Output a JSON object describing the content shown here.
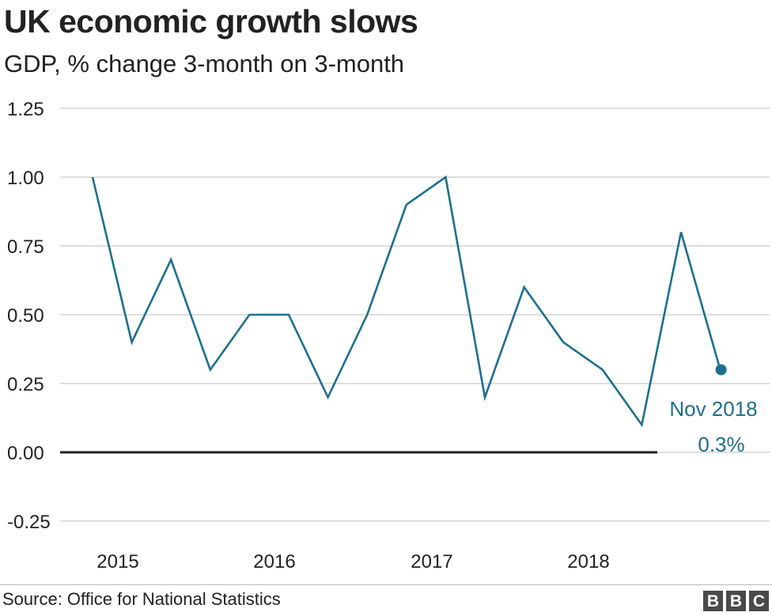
{
  "title": "UK economic growth slows",
  "subtitle": "GDP, % change 3-month on 3-month",
  "source": "Source: Office for National Statistics",
  "logo_letters": [
    "B",
    "B",
    "C"
  ],
  "colors": {
    "line": "#1e6f8e",
    "grid": "#cccccc",
    "zero": "#222222",
    "text": "#222222"
  },
  "chart_data": {
    "type": "line",
    "ylim": [
      -0.25,
      1.25
    ],
    "yticks": [
      1.25,
      1.0,
      0.75,
      0.5,
      0.25,
      0.0,
      -0.25
    ],
    "ytick_labels": [
      "1.25",
      "1.00",
      "0.75",
      "0.50",
      "0.25",
      "0.00",
      "-0.25"
    ],
    "xtick_labels": [
      "2015",
      "2016",
      "2017",
      "2018"
    ],
    "series": [
      {
        "x": [
          "2014-11",
          "2015-02",
          "2015-05",
          "2015-08",
          "2015-11",
          "2016-02",
          "2016-05",
          "2016-08",
          "2016-11",
          "2017-02",
          "2017-05",
          "2017-08",
          "2017-11",
          "2018-02",
          "2018-05",
          "2018-08",
          "2018-11"
        ],
        "values": [
          1.0,
          0.4,
          0.7,
          0.3,
          0.5,
          0.5,
          0.2,
          0.5,
          0.9,
          1.0,
          0.2,
          0.6,
          0.4,
          0.3,
          0.1,
          0.8,
          0.3
        ]
      }
    ],
    "annotation": {
      "line1": "Nov 2018",
      "line2": "0.3%"
    }
  }
}
